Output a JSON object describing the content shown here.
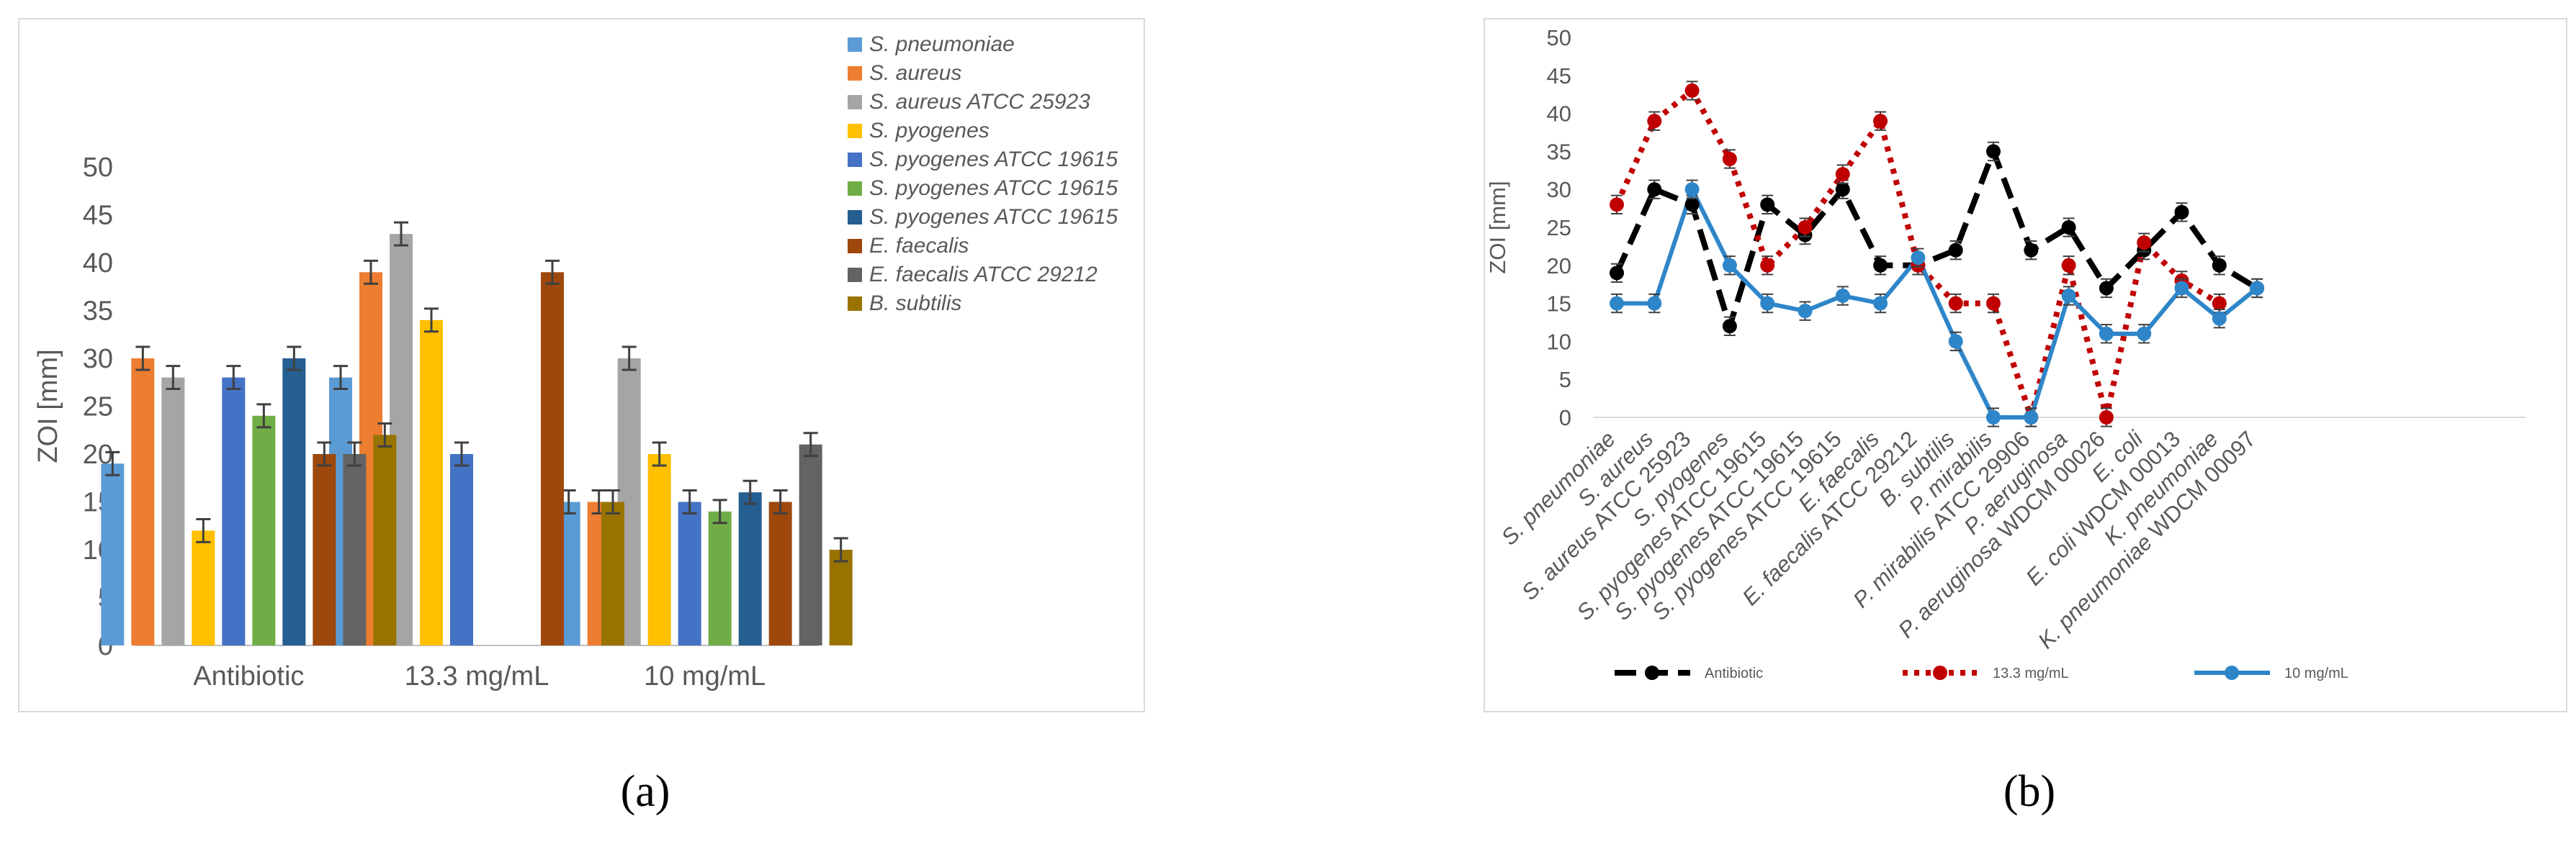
{
  "captions": {
    "a": "(a)",
    "b": "(b)"
  },
  "chart_data": [
    {
      "type": "bar",
      "title": "",
      "xlabel": "",
      "ylabel": "ZOI [mm]",
      "ylim": [
        0,
        50
      ],
      "yticks": [
        0,
        5,
        10,
        15,
        20,
        25,
        30,
        35,
        40,
        45,
        50
      ],
      "grid": false,
      "legend_position": "right",
      "categories": [
        "Antibiotic",
        "13.3 mg/mL",
        "10 mg/mL"
      ],
      "series": [
        {
          "name": "S. pneumoniae",
          "color": "#5b9bd5",
          "values": [
            19,
            28,
            15
          ]
        },
        {
          "name": "S. aureus",
          "color": "#ed7d31",
          "values": [
            30,
            39,
            15
          ]
        },
        {
          "name": "S. aureus ATCC 25923",
          "color": "#a5a5a5",
          "values": [
            28,
            43,
            30
          ]
        },
        {
          "name": "S. pyogenes",
          "color": "#ffc000",
          "values": [
            12,
            34,
            20
          ]
        },
        {
          "name": "S. pyogenes ATCC 19615",
          "color": "#4472c4",
          "values": [
            28,
            20,
            15
          ]
        },
        {
          "name": "S. pyogenes ATCC 19615",
          "color": "#70ad47",
          "values": [
            24,
            null,
            14
          ]
        },
        {
          "name": "S. pyogenes ATCC 19615",
          "color": "#255e91",
          "values": [
            30,
            null,
            16
          ]
        },
        {
          "name": "E. faecalis",
          "color": "#9e480e",
          "values": [
            20,
            39,
            15
          ]
        },
        {
          "name": "E. faecalis ATCC 29212",
          "color": "#636363",
          "values": [
            20,
            null,
            21
          ]
        },
        {
          "name": "B. subtilis",
          "color": "#997300",
          "values": [
            22,
            15,
            10
          ]
        }
      ]
    },
    {
      "type": "line",
      "title": "",
      "xlabel": "",
      "ylabel": "ZOI [mm]",
      "ylim": [
        0,
        50
      ],
      "yticks": [
        0,
        5,
        10,
        15,
        20,
        25,
        30,
        35,
        40,
        45,
        50
      ],
      "grid": false,
      "legend_position": "bottom",
      "categories": [
        "S. pneumoniae",
        "S. aureus",
        "S. aureus ATCC 25923",
        "S. pyogenes",
        "S. pyogenes ATCC 19615",
        "S. pyogenes ATCC 19615",
        "S. pyogenes ATCC 19615",
        "E. faecalis",
        "E. faecalis ATCC 29212",
        "B. subtilis",
        "P. mirabilis",
        "P. mirabilis ATCC 29906",
        "P. aeruginosa",
        "P. aeruginosa WDCM 00026",
        "E. coli",
        "E. coli WDCM 00013",
        "K. pneumoniae",
        "K. pneumoniae WDCM 00097"
      ],
      "series": [
        {
          "name": "Antibiotic",
          "color": "#000000",
          "style": "dashed",
          "values": [
            19,
            30,
            28,
            12,
            28,
            24,
            30,
            20,
            20,
            22,
            35,
            22,
            25,
            17,
            22,
            27,
            20,
            17
          ]
        },
        {
          "name": "13.3 mg/mL",
          "color": "#c00000",
          "style": "dotted",
          "values": [
            28,
            39,
            43,
            34,
            20,
            25,
            32,
            39,
            20,
            15,
            15,
            0,
            20,
            0,
            23,
            18,
            15,
            null
          ]
        },
        {
          "name": "10 mg/mL",
          "color": "#2e86c9",
          "style": "solid",
          "values": [
            15,
            15,
            30,
            20,
            15,
            14,
            16,
            15,
            21,
            10,
            0,
            0,
            16,
            11,
            11,
            17,
            13,
            17
          ]
        }
      ]
    }
  ]
}
